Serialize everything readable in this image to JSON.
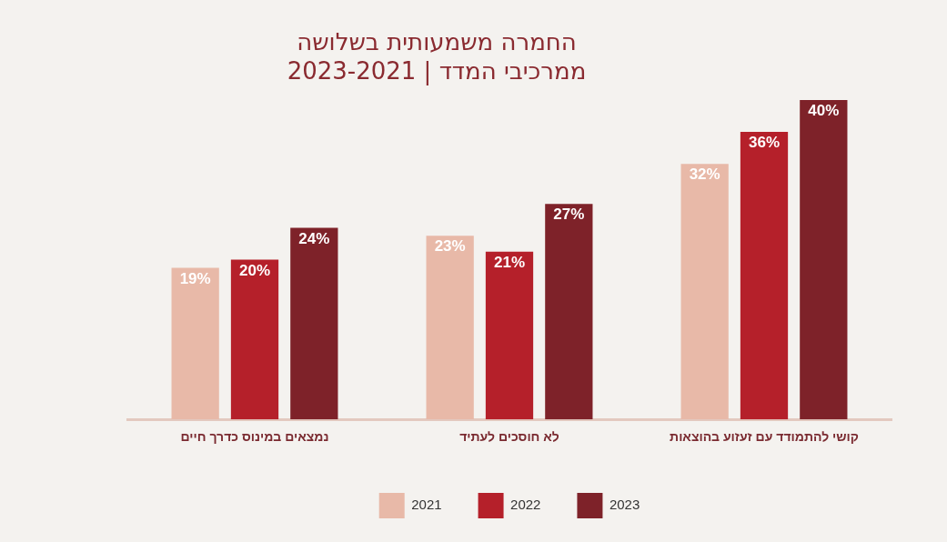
{
  "chart_data": {
    "type": "bar",
    "title": "החמרה משמעותית בשלושה ממרכיבי המדד | 2023-2021",
    "categories": [
      "נמצאים במינוס כדרך חיים",
      "לא חוסכים לעתיד",
      "קושי להתמודד עם זעזוע בהוצאות"
    ],
    "series": [
      {
        "name": "2021",
        "color": "#e8b9a8",
        "values": [
          19,
          23,
          32
        ],
        "value_labels": [
          "19%",
          "23%",
          "32%"
        ]
      },
      {
        "name": "2022",
        "color": "#b5202a",
        "values": [
          20,
          21,
          36
        ],
        "value_labels": [
          "20%",
          "21%",
          "36%"
        ]
      },
      {
        "name": "2023",
        "color": "#7e2229",
        "values": [
          24,
          27,
          40
        ],
        "value_labels": [
          "24%",
          "27%",
          "40%"
        ]
      }
    ],
    "legend": "bottom",
    "grid": false
  }
}
